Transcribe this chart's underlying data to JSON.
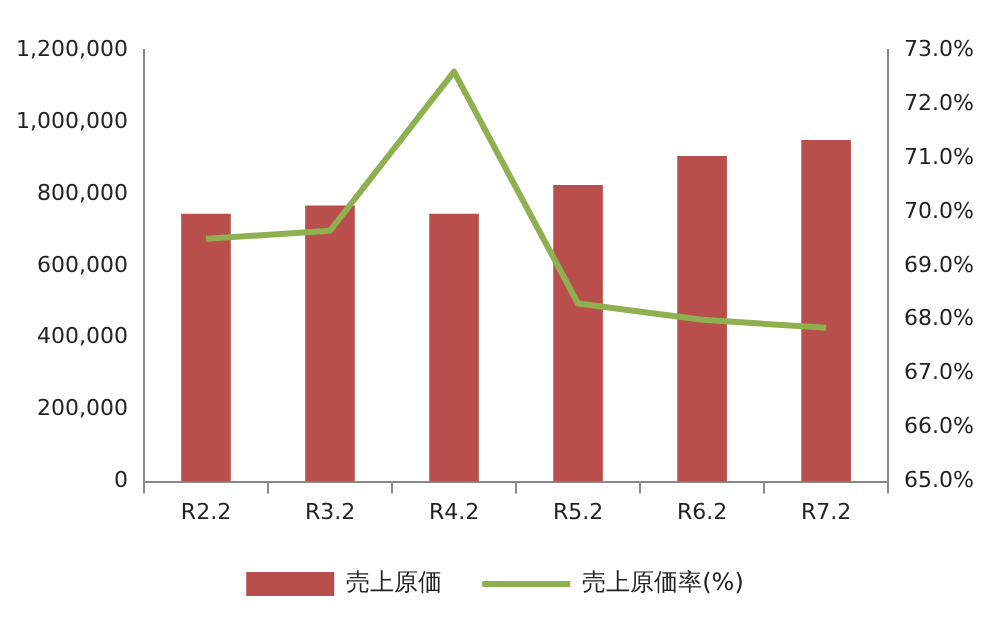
{
  "chart_data": {
    "type": "bar",
    "categories": [
      "R2.2",
      "R3.2",
      "R4.2",
      "R5.2",
      "R6.2",
      "R7.2"
    ],
    "series": [
      {
        "name": "売上原価",
        "color": "#b94f4c",
        "values": [
          745000,
          768000,
          745000,
          825000,
          905000,
          950000
        ]
      },
      {
        "name": "売上原価率(%)",
        "type": "line",
        "axis": "y2",
        "color": "#8eb04f",
        "marker": "none",
        "values": [
          69.5,
          69.65,
          72.6,
          68.3,
          68.0,
          67.85
        ]
      }
    ],
    "ylim": [
      0,
      1200000
    ],
    "yticks": [
      0,
      {
        "value": 200000,
        "label": "200,000"
      },
      {
        "value": 400000,
        "label": "400,000"
      },
      {
        "value": 600000,
        "label": "600,000"
      },
      {
        "value": 800000,
        "label": "800,000"
      },
      {
        "value": 1000000,
        "label": "1,000,000"
      },
      {
        "value": 1200000,
        "label": "1,200,000"
      }
    ],
    "y2lim": [
      65,
      73
    ],
    "y2ticks": [
      {
        "value": 65,
        "label": "65.0%"
      },
      {
        "value": 66,
        "label": "66.0%"
      },
      {
        "value": 67,
        "label": "67.0%"
      },
      {
        "value": 68,
        "label": "68.0%"
      },
      {
        "value": 69,
        "label": "69.0%"
      },
      {
        "value": 70,
        "label": "70.0%"
      },
      {
        "value": 71,
        "label": "71.0%"
      },
      {
        "value": 72,
        "label": "72.0%"
      },
      {
        "value": 73,
        "label": "73.0%"
      }
    ],
    "grid": false,
    "legend": "bottom"
  }
}
